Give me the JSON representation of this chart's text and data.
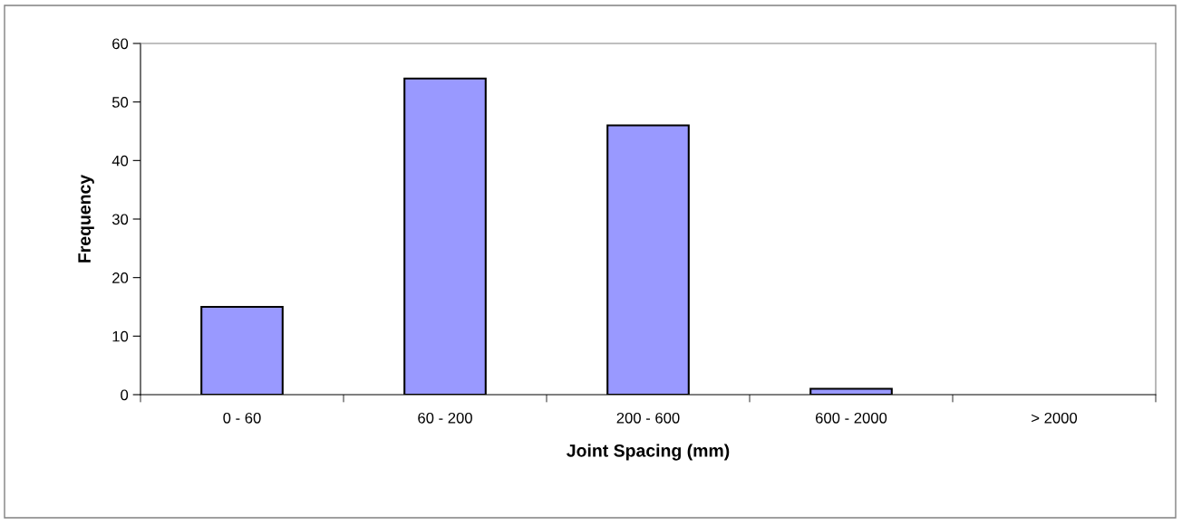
{
  "chart_data": {
    "type": "bar",
    "xlabel": "Joint Spacing (mm)",
    "ylabel": "Frequency",
    "categories": [
      "0 - 60",
      "60 - 200",
      "200 - 600",
      "600 - 2000",
      "> 2000"
    ],
    "values": [
      15,
      54,
      46,
      1,
      null
    ],
    "color": "#9999ff",
    "ylim": [
      0,
      60
    ],
    "yticks": [
      0,
      10,
      20,
      30,
      40,
      50,
      60
    ],
    "grid": false,
    "legend": false
  }
}
